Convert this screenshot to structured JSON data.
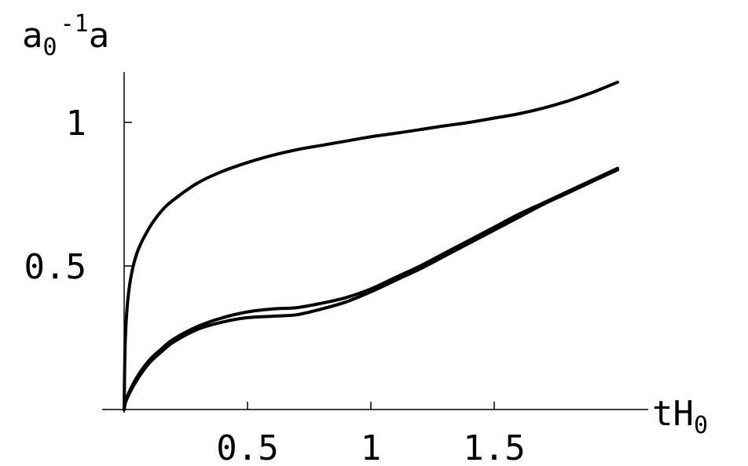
{
  "chart_data": {
    "type": "line",
    "xlabel": {
      "base": "tH",
      "sub": "0"
    },
    "ylabel": {
      "base1": "a",
      "sub": "0",
      "sup": "-1",
      "base2": "a"
    },
    "xlim": [
      0,
      2.08
    ],
    "ylim": [
      0,
      1.18
    ],
    "x_ticks": [
      {
        "value": 0.5,
        "label": "0.5"
      },
      {
        "value": 1,
        "label": "1"
      },
      {
        "value": 1.5,
        "label": "1.5"
      }
    ],
    "y_ticks": [
      {
        "value": 0.5,
        "label": "0.5"
      },
      {
        "value": 1,
        "label": "1"
      }
    ],
    "series": [
      {
        "x": [
          0,
          0.005,
          0.02,
          0.05,
          0.1,
          0.15,
          0.2,
          0.3,
          0.4,
          0.5,
          0.6,
          0.7,
          0.8,
          0.9,
          1.0,
          1.1,
          1.2,
          1.3,
          1.4,
          1.5,
          1.6,
          1.7,
          1.8,
          1.9,
          2.0
        ],
        "values": [
          0,
          0.25,
          0.42,
          0.54,
          0.63,
          0.69,
          0.73,
          0.79,
          0.83,
          0.86,
          0.885,
          0.905,
          0.92,
          0.935,
          0.95,
          0.962,
          0.975,
          0.988,
          1.0,
          1.015,
          1.03,
          1.05,
          1.075,
          1.105,
          1.14
        ]
      },
      {
        "x": [
          0,
          0.01,
          0.05,
          0.1,
          0.15,
          0.2,
          0.3,
          0.4,
          0.5,
          0.6,
          0.7,
          0.8,
          0.9,
          1.0,
          1.1,
          1.2,
          1.3,
          1.4,
          1.5,
          1.6,
          1.7,
          1.8,
          1.9,
          2.0
        ],
        "values": [
          0,
          0.04,
          0.11,
          0.17,
          0.21,
          0.245,
          0.29,
          0.32,
          0.34,
          0.35,
          0.355,
          0.37,
          0.39,
          0.42,
          0.46,
          0.5,
          0.545,
          0.59,
          0.635,
          0.68,
          0.72,
          0.76,
          0.8,
          0.84
        ]
      },
      {
        "x": [
          0,
          0.01,
          0.05,
          0.1,
          0.15,
          0.2,
          0.3,
          0.4,
          0.5,
          0.6,
          0.7,
          0.8,
          0.9,
          1.0,
          1.1,
          1.2,
          1.3,
          1.4,
          1.5,
          1.6,
          1.7,
          1.8,
          1.9,
          2.0
        ],
        "values": [
          0,
          0.035,
          0.1,
          0.16,
          0.2,
          0.235,
          0.28,
          0.305,
          0.32,
          0.325,
          0.33,
          0.35,
          0.375,
          0.41,
          0.45,
          0.49,
          0.535,
          0.58,
          0.625,
          0.67,
          0.715,
          0.755,
          0.795,
          0.835
        ]
      }
    ],
    "grid": false,
    "legend": "none"
  }
}
